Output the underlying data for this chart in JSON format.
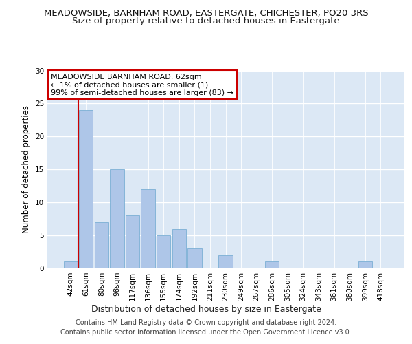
{
  "title1": "MEADOWSIDE, BARNHAM ROAD, EASTERGATE, CHICHESTER, PO20 3RS",
  "title2": "Size of property relative to detached houses in Eastergate",
  "xlabel": "Distribution of detached houses by size in Eastergate",
  "ylabel": "Number of detached properties",
  "categories": [
    "42sqm",
    "61sqm",
    "80sqm",
    "98sqm",
    "117sqm",
    "136sqm",
    "155sqm",
    "174sqm",
    "192sqm",
    "211sqm",
    "230sqm",
    "249sqm",
    "267sqm",
    "286sqm",
    "305sqm",
    "324sqm",
    "343sqm",
    "361sqm",
    "380sqm",
    "399sqm",
    "418sqm"
  ],
  "values": [
    1,
    24,
    7,
    15,
    8,
    12,
    5,
    6,
    3,
    0,
    2,
    0,
    0,
    1,
    0,
    0,
    0,
    0,
    0,
    1,
    0
  ],
  "bar_color": "#aec6e8",
  "bar_edge_color": "#7bafd4",
  "vline_color": "#cc0000",
  "annotation_box_text": "MEADOWSIDE BARNHAM ROAD: 62sqm\n← 1% of detached houses are smaller (1)\n99% of semi-detached houses are larger (83) →",
  "annotation_box_color": "#cc0000",
  "ylim": [
    0,
    30
  ],
  "yticks": [
    0,
    5,
    10,
    15,
    20,
    25,
    30
  ],
  "footer_text": "Contains HM Land Registry data © Crown copyright and database right 2024.\nContains public sector information licensed under the Open Government Licence v3.0.",
  "background_color": "#dce8f5",
  "grid_color": "#ffffff",
  "title1_fontsize": 9.5,
  "title2_fontsize": 9.5,
  "xlabel_fontsize": 9,
  "ylabel_fontsize": 8.5,
  "footer_fontsize": 7,
  "tick_fontsize": 7.5,
  "annot_fontsize": 8
}
